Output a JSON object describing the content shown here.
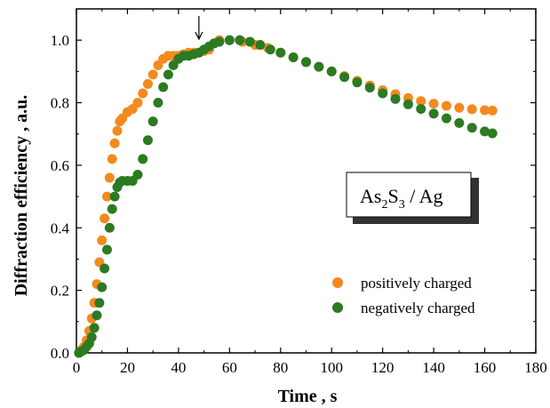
{
  "chart_data": {
    "type": "scatter",
    "xlabel": "Time , s",
    "ylabel": "Diffraction efficiency , a.u.",
    "xlim": [
      0,
      180
    ],
    "ylim": [
      0,
      1.1
    ],
    "x_ticks": [
      0,
      20,
      40,
      60,
      80,
      100,
      120,
      140,
      160,
      180
    ],
    "y_ticks": [
      0.0,
      0.2,
      0.4,
      0.6,
      0.8,
      1.0
    ],
    "x_tick_labels": [
      "0",
      "20",
      "40",
      "60",
      "80",
      "100",
      "120",
      "140",
      "160",
      "180"
    ],
    "y_tick_labels": [
      "0.0",
      "0.2",
      "0.4",
      "0.6",
      "0.8",
      "1.0"
    ],
    "grid": false,
    "legend_position": "bottom-right",
    "annotation_box": {
      "base": "As",
      "sub1": "2",
      "mid": "S",
      "sub2": "3",
      "rest": " / Ag"
    },
    "arrow_marker_x": 48,
    "series": [
      {
        "name": "positively charged",
        "color": "#f28a1f",
        "points": [
          [
            1,
            0.0
          ],
          [
            2,
            0.01
          ],
          [
            3,
            0.02
          ],
          [
            4,
            0.04
          ],
          [
            5,
            0.07
          ],
          [
            6,
            0.11
          ],
          [
            7,
            0.16
          ],
          [
            8,
            0.22
          ],
          [
            9,
            0.29
          ],
          [
            10,
            0.36
          ],
          [
            11,
            0.43
          ],
          [
            12,
            0.5
          ],
          [
            13,
            0.56
          ],
          [
            14,
            0.62
          ],
          [
            15,
            0.67
          ],
          [
            16,
            0.71
          ],
          [
            17,
            0.74
          ],
          [
            18,
            0.75
          ],
          [
            20,
            0.77
          ],
          [
            22,
            0.78
          ],
          [
            24,
            0.8
          ],
          [
            26,
            0.83
          ],
          [
            28,
            0.86
          ],
          [
            30,
            0.89
          ],
          [
            32,
            0.92
          ],
          [
            34,
            0.94
          ],
          [
            36,
            0.95
          ],
          [
            38,
            0.95
          ],
          [
            40,
            0.95
          ],
          [
            42,
            0.955
          ],
          [
            44,
            0.96
          ],
          [
            46,
            0.96
          ],
          [
            48,
            0.96
          ],
          [
            50,
            0.965
          ],
          [
            52,
            0.97
          ],
          [
            54,
            0.99
          ],
          [
            56,
            1.0
          ],
          [
            60,
            1.0
          ],
          [
            65,
            0.995
          ],
          [
            70,
            0.985
          ],
          [
            75,
            0.975
          ],
          [
            80,
            0.96
          ],
          [
            85,
            0.945
          ],
          [
            90,
            0.93
          ],
          [
            95,
            0.915
          ],
          [
            100,
            0.9
          ],
          [
            105,
            0.885
          ],
          [
            110,
            0.87
          ],
          [
            115,
            0.855
          ],
          [
            120,
            0.84
          ],
          [
            125,
            0.827
          ],
          [
            130,
            0.815
          ],
          [
            135,
            0.805
          ],
          [
            140,
            0.797
          ],
          [
            145,
            0.79
          ],
          [
            150,
            0.784
          ],
          [
            155,
            0.779
          ],
          [
            160,
            0.776
          ],
          [
            163,
            0.775
          ]
        ]
      },
      {
        "name": "negatively charged",
        "color": "#2c7a22",
        "points": [
          [
            1,
            0.0
          ],
          [
            2,
            0.005
          ],
          [
            3,
            0.01
          ],
          [
            4,
            0.02
          ],
          [
            5,
            0.03
          ],
          [
            6,
            0.05
          ],
          [
            7,
            0.08
          ],
          [
            8,
            0.12
          ],
          [
            9,
            0.16
          ],
          [
            10,
            0.21
          ],
          [
            11,
            0.27
          ],
          [
            12,
            0.33
          ],
          [
            13,
            0.4
          ],
          [
            14,
            0.46
          ],
          [
            15,
            0.5
          ],
          [
            16,
            0.53
          ],
          [
            17,
            0.545
          ],
          [
            18,
            0.55
          ],
          [
            20,
            0.55
          ],
          [
            22,
            0.55
          ],
          [
            24,
            0.57
          ],
          [
            26,
            0.62
          ],
          [
            28,
            0.68
          ],
          [
            30,
            0.74
          ],
          [
            32,
            0.8
          ],
          [
            34,
            0.85
          ],
          [
            36,
            0.89
          ],
          [
            38,
            0.92
          ],
          [
            40,
            0.94
          ],
          [
            42,
            0.95
          ],
          [
            44,
            0.95
          ],
          [
            46,
            0.955
          ],
          [
            48,
            0.96
          ],
          [
            50,
            0.97
          ],
          [
            52,
            0.98
          ],
          [
            54,
            0.99
          ],
          [
            56,
            0.995
          ],
          [
            60,
            1.0
          ],
          [
            64,
            1.0
          ],
          [
            68,
            0.995
          ],
          [
            72,
            0.985
          ],
          [
            76,
            0.97
          ],
          [
            80,
            0.96
          ],
          [
            85,
            0.945
          ],
          [
            90,
            0.93
          ],
          [
            95,
            0.915
          ],
          [
            100,
            0.9
          ],
          [
            105,
            0.882
          ],
          [
            110,
            0.865
          ],
          [
            115,
            0.848
          ],
          [
            120,
            0.83
          ],
          [
            125,
            0.812
          ],
          [
            130,
            0.795
          ],
          [
            135,
            0.78
          ],
          [
            140,
            0.765
          ],
          [
            145,
            0.75
          ],
          [
            150,
            0.735
          ],
          [
            155,
            0.72
          ],
          [
            160,
            0.708
          ],
          [
            163,
            0.702
          ]
        ]
      }
    ]
  }
}
